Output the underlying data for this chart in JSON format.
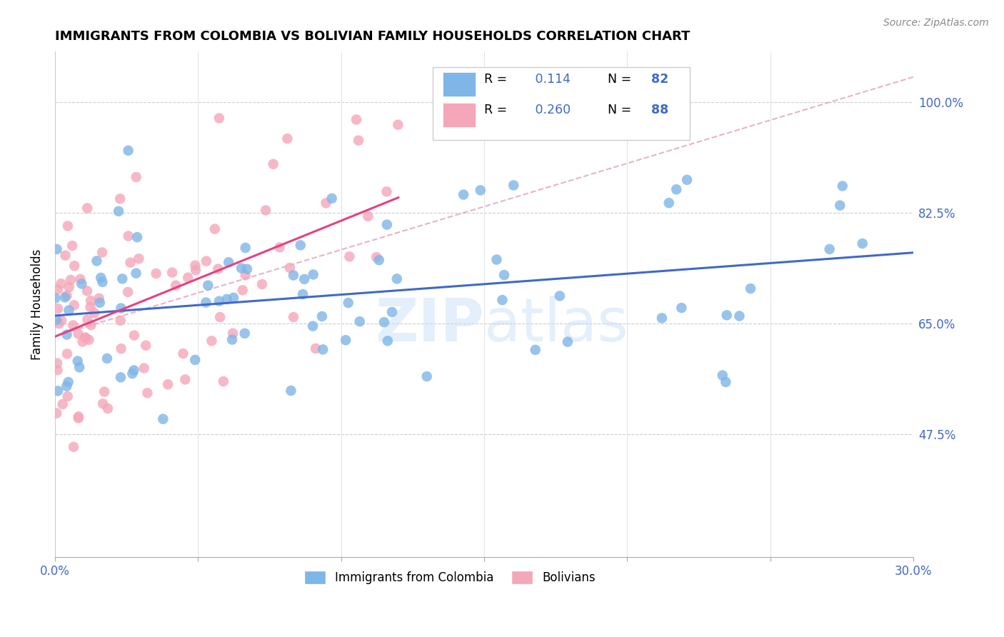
{
  "title": "IMMIGRANTS FROM COLOMBIA VS BOLIVIAN FAMILY HOUSEHOLDS CORRELATION CHART",
  "source": "Source: ZipAtlas.com",
  "ylabel": "Family Households",
  "xlim": [
    0.0,
    0.3
  ],
  "xtick_positions": [
    0.0,
    0.05,
    0.1,
    0.15,
    0.2,
    0.25,
    0.3
  ],
  "xtick_labels_show": [
    "0.0%",
    "",
    "",
    "",
    "",
    "",
    "30.0%"
  ],
  "ytick_labels": [
    "47.5%",
    "65.0%",
    "82.5%",
    "100.0%"
  ],
  "ytick_vals": [
    0.475,
    0.65,
    0.825,
    1.0
  ],
  "ylim_low": 0.28,
  "ylim_high": 1.08,
  "R_colombia": 0.114,
  "N_colombia": 82,
  "R_bolivia": 0.26,
  "N_bolivia": 88,
  "color_colombia": "#7EB6E8",
  "color_bolivia": "#F4A7B9",
  "trend_color_colombia": "#4169C8",
  "trend_color_bolivia": "#E84080",
  "dashed_line_color": "#E0A0C0",
  "watermark_color": "#C8E0F8",
  "seed_colombia": 12,
  "seed_bolivia": 77
}
